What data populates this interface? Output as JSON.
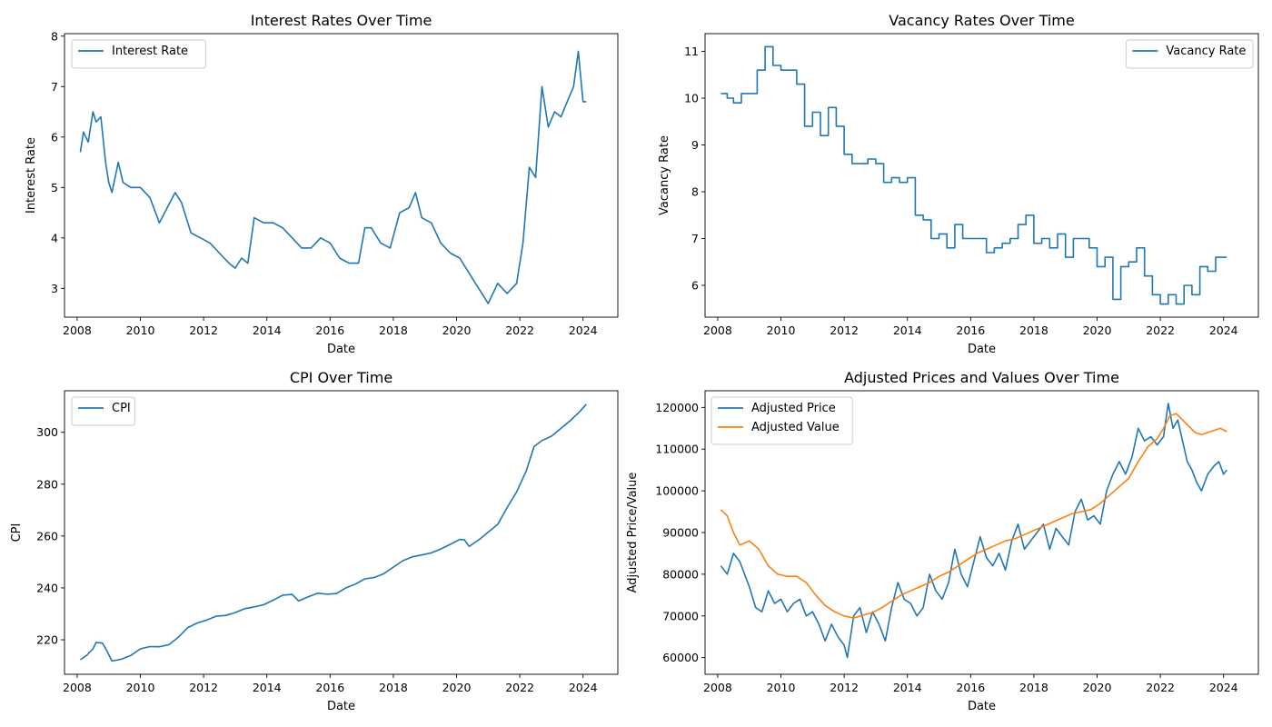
{
  "colors": {
    "blue": "#1f77b4",
    "orange": "#ff7f0e"
  },
  "chart_data": [
    {
      "type": "line",
      "title": "Interest Rates Over Time",
      "xlabel": "Date",
      "ylabel": "Interest Rate",
      "xlim": [
        2007.6,
        2025.1
      ],
      "ylim": [
        2.43,
        8.05
      ],
      "xticks": [
        2008,
        2010,
        2012,
        2014,
        2016,
        2018,
        2020,
        2022,
        2024
      ],
      "yticks": [
        3,
        4,
        5,
        6,
        7,
        8
      ],
      "legend": "upper-left",
      "grid": false,
      "series": [
        {
          "name": "Interest Rate",
          "color": "#1f77b4",
          "step": false,
          "x": [
            2008.1,
            2008.2,
            2008.35,
            2008.5,
            2008.6,
            2008.75,
            2008.9,
            2009.0,
            2009.1,
            2009.3,
            2009.45,
            2009.7,
            2010.0,
            2010.3,
            2010.6,
            2010.85,
            2011.1,
            2011.3,
            2011.6,
            2011.9,
            2012.2,
            2012.5,
            2012.8,
            2013.0,
            2013.2,
            2013.4,
            2013.6,
            2013.9,
            2014.2,
            2014.5,
            2014.8,
            2015.1,
            2015.4,
            2015.7,
            2016.0,
            2016.3,
            2016.6,
            2016.9,
            2017.1,
            2017.3,
            2017.6,
            2017.9,
            2018.2,
            2018.5,
            2018.7,
            2018.9,
            2019.2,
            2019.5,
            2019.8,
            2020.1,
            2020.4,
            2020.7,
            2021.0,
            2021.3,
            2021.6,
            2021.9,
            2022.1,
            2022.3,
            2022.5,
            2022.7,
            2022.9,
            2023.1,
            2023.3,
            2023.5,
            2023.7,
            2023.85,
            2024.0,
            2024.1
          ],
          "y": [
            5.7,
            6.1,
            5.9,
            6.5,
            6.3,
            6.4,
            5.5,
            5.1,
            4.9,
            5.5,
            5.1,
            5.0,
            5.0,
            4.8,
            4.3,
            4.6,
            4.9,
            4.7,
            4.1,
            4.0,
            3.9,
            3.7,
            3.5,
            3.4,
            3.6,
            3.5,
            4.4,
            4.3,
            4.3,
            4.2,
            4.0,
            3.8,
            3.8,
            4.0,
            3.9,
            3.6,
            3.5,
            3.5,
            4.2,
            4.2,
            3.9,
            3.8,
            4.5,
            4.6,
            4.9,
            4.4,
            4.3,
            3.9,
            3.7,
            3.6,
            3.3,
            3.0,
            2.7,
            3.1,
            2.9,
            3.1,
            3.9,
            5.4,
            5.2,
            7.0,
            6.2,
            6.5,
            6.4,
            6.7,
            7.0,
            7.7,
            6.7,
            6.7
          ]
        }
      ]
    },
    {
      "type": "line",
      "title": "Vacancy Rates Over Time",
      "xlabel": "Date",
      "ylabel": "Vacancy Rate",
      "xlim": [
        2007.6,
        2025.1
      ],
      "ylim": [
        5.32,
        11.38
      ],
      "xticks": [
        2008,
        2010,
        2012,
        2014,
        2016,
        2018,
        2020,
        2022,
        2024
      ],
      "yticks": [
        6,
        7,
        8,
        9,
        10,
        11
      ],
      "legend": "upper-right",
      "grid": false,
      "series": [
        {
          "name": "Vacancy Rate",
          "color": "#1f77b4",
          "step": true,
          "x": [
            2008.1,
            2008.3,
            2008.5,
            2008.75,
            2009.0,
            2009.25,
            2009.5,
            2009.75,
            2010.0,
            2010.5,
            2010.75,
            2011.0,
            2011.25,
            2011.5,
            2011.75,
            2012.0,
            2012.25,
            2012.75,
            2013.0,
            2013.25,
            2013.5,
            2013.75,
            2014.0,
            2014.25,
            2014.5,
            2014.75,
            2015.0,
            2015.25,
            2015.5,
            2015.75,
            2016.25,
            2016.5,
            2016.75,
            2017.0,
            2017.25,
            2017.5,
            2017.75,
            2018.0,
            2018.25,
            2018.5,
            2018.75,
            2019.0,
            2019.25,
            2019.75,
            2020.0,
            2020.25,
            2020.5,
            2020.75,
            2021.0,
            2021.25,
            2021.5,
            2021.75,
            2022.0,
            2022.25,
            2022.5,
            2022.75,
            2023.0,
            2023.25,
            2023.5,
            2023.75,
            2024.1
          ],
          "y": [
            10.1,
            10.0,
            9.9,
            10.1,
            10.1,
            10.6,
            11.1,
            10.7,
            10.6,
            10.3,
            9.4,
            9.7,
            9.2,
            9.8,
            9.4,
            8.8,
            8.6,
            8.7,
            8.6,
            8.2,
            8.3,
            8.2,
            8.3,
            7.5,
            7.4,
            7.0,
            7.1,
            6.8,
            7.3,
            7.0,
            7.0,
            6.7,
            6.8,
            6.9,
            7.0,
            7.3,
            7.5,
            6.9,
            7.0,
            6.8,
            7.1,
            6.6,
            7.0,
            6.8,
            6.4,
            6.6,
            5.7,
            6.4,
            6.5,
            6.8,
            6.2,
            5.8,
            5.6,
            5.8,
            5.6,
            6.0,
            5.8,
            6.4,
            6.3,
            6.6,
            6.6
          ]
        }
      ]
    },
    {
      "type": "line",
      "title": "CPI Over Time",
      "xlabel": "Date",
      "ylabel": "CPI",
      "xlim": [
        2007.6,
        2025.1
      ],
      "ylim": [
        206.7,
        316.0
      ],
      "xticks": [
        2008,
        2010,
        2012,
        2014,
        2016,
        2018,
        2020,
        2022,
        2024
      ],
      "yticks": [
        220,
        240,
        260,
        280,
        300
      ],
      "legend": "upper-left",
      "grid": false,
      "series": [
        {
          "name": "CPI",
          "color": "#1f77b4",
          "step": false,
          "x": [
            2008.1,
            2008.3,
            2008.5,
            2008.6,
            2008.8,
            2008.95,
            2009.1,
            2009.4,
            2009.7,
            2010.0,
            2010.3,
            2010.6,
            2010.9,
            2011.2,
            2011.5,
            2011.8,
            2012.1,
            2012.4,
            2012.7,
            2013.0,
            2013.3,
            2013.6,
            2013.9,
            2014.2,
            2014.5,
            2014.8,
            2015.0,
            2015.3,
            2015.6,
            2015.9,
            2016.2,
            2016.5,
            2016.8,
            2017.1,
            2017.4,
            2017.7,
            2018.0,
            2018.3,
            2018.6,
            2018.9,
            2019.2,
            2019.5,
            2019.8,
            2020.1,
            2020.25,
            2020.4,
            2020.7,
            2021.0,
            2021.3,
            2021.6,
            2021.9,
            2022.2,
            2022.45,
            2022.7,
            2023.0,
            2023.3,
            2023.6,
            2023.9,
            2024.1
          ],
          "y": [
            212.3,
            214.0,
            216.5,
            219.0,
            218.7,
            215.5,
            211.8,
            212.5,
            214.0,
            216.5,
            217.4,
            217.3,
            218.1,
            221.0,
            224.7,
            226.5,
            227.6,
            229.1,
            229.4,
            230.5,
            232.0,
            232.7,
            233.5,
            235.3,
            237.2,
            237.5,
            235.0,
            236.5,
            238.0,
            237.6,
            237.8,
            240.0,
            241.5,
            243.5,
            244.0,
            245.5,
            248.0,
            250.5,
            252.0,
            252.7,
            253.5,
            255.0,
            256.8,
            258.7,
            258.5,
            256.0,
            258.5,
            261.5,
            264.5,
            271.0,
            277.0,
            285.0,
            294.5,
            296.8,
            298.5,
            301.5,
            304.5,
            308.0,
            310.8
          ]
        }
      ]
    },
    {
      "type": "line",
      "title": "Adjusted Prices and Values Over Time",
      "xlabel": "Date",
      "ylabel": "Adjusted Price/Value",
      "xlim": [
        2007.6,
        2025.1
      ],
      "ylim": [
        56000,
        124000
      ],
      "xticks": [
        2008,
        2010,
        2012,
        2014,
        2016,
        2018,
        2020,
        2022,
        2024
      ],
      "yticks": [
        60000,
        70000,
        80000,
        90000,
        100000,
        110000,
        120000
      ],
      "legend": "upper-left",
      "grid": false,
      "series": [
        {
          "name": "Adjusted Price",
          "color": "#1f77b4",
          "step": false,
          "x": [
            2008.1,
            2008.3,
            2008.5,
            2008.7,
            2009.0,
            2009.2,
            2009.4,
            2009.6,
            2009.8,
            2010.0,
            2010.2,
            2010.4,
            2010.6,
            2010.8,
            2011.0,
            2011.2,
            2011.4,
            2011.6,
            2011.8,
            2012.0,
            2012.1,
            2012.3,
            2012.5,
            2012.7,
            2012.9,
            2013.1,
            2013.3,
            2013.5,
            2013.7,
            2013.9,
            2014.1,
            2014.3,
            2014.5,
            2014.7,
            2014.9,
            2015.1,
            2015.3,
            2015.5,
            2015.7,
            2015.9,
            2016.1,
            2016.3,
            2016.5,
            2016.7,
            2016.9,
            2017.1,
            2017.3,
            2017.5,
            2017.7,
            2017.9,
            2018.1,
            2018.3,
            2018.5,
            2018.7,
            2018.9,
            2019.1,
            2019.3,
            2019.5,
            2019.7,
            2019.9,
            2020.1,
            2020.3,
            2020.5,
            2020.7,
            2020.9,
            2021.1,
            2021.3,
            2021.5,
            2021.7,
            2021.9,
            2022.1,
            2022.25,
            2022.4,
            2022.55,
            2022.7,
            2022.85,
            2023.0,
            2023.15,
            2023.3,
            2023.5,
            2023.7,
            2023.85,
            2024.0,
            2024.1
          ],
          "y": [
            82000,
            80000,
            85000,
            83000,
            77000,
            72000,
            71000,
            76000,
            73000,
            74000,
            71000,
            73000,
            74000,
            70000,
            71000,
            68000,
            64000,
            68000,
            65000,
            63000,
            60000,
            70000,
            72000,
            66000,
            71000,
            68000,
            64000,
            72000,
            78000,
            74000,
            73000,
            70000,
            72000,
            80000,
            76000,
            74000,
            78000,
            86000,
            80000,
            77000,
            83000,
            89000,
            84000,
            82000,
            85000,
            81000,
            88000,
            92000,
            86000,
            88000,
            90000,
            92000,
            86000,
            91000,
            89000,
            87000,
            95000,
            98000,
            93000,
            94000,
            92000,
            100000,
            104000,
            107000,
            104000,
            108000,
            115000,
            112000,
            113000,
            111000,
            113000,
            121000,
            115000,
            117000,
            112000,
            107000,
            105000,
            102000,
            100000,
            104000,
            106000,
            107000,
            104000,
            105000
          ]
        },
        {
          "name": "Adjusted Value",
          "color": "#ff7f0e",
          "step": false,
          "x": [
            2008.1,
            2008.3,
            2008.5,
            2008.7,
            2009.0,
            2009.3,
            2009.6,
            2009.9,
            2010.2,
            2010.5,
            2010.8,
            2011.1,
            2011.4,
            2011.7,
            2012.0,
            2012.3,
            2012.6,
            2012.9,
            2013.2,
            2013.5,
            2013.8,
            2014.1,
            2014.4,
            2014.7,
            2015.0,
            2015.3,
            2015.6,
            2015.9,
            2016.2,
            2016.5,
            2016.8,
            2017.1,
            2017.4,
            2017.7,
            2018.0,
            2018.3,
            2018.6,
            2018.9,
            2019.2,
            2019.5,
            2019.8,
            2020.1,
            2020.4,
            2020.7,
            2021.0,
            2021.3,
            2021.6,
            2021.9,
            2022.1,
            2022.3,
            2022.5,
            2022.7,
            2022.9,
            2023.1,
            2023.3,
            2023.5,
            2023.7,
            2023.9,
            2024.1
          ],
          "y": [
            95500,
            94000,
            90000,
            87000,
            88000,
            86000,
            82000,
            80000,
            79500,
            79500,
            78000,
            75000,
            72500,
            71000,
            70000,
            69500,
            70200,
            70800,
            72000,
            73500,
            75000,
            76000,
            77000,
            78000,
            79500,
            80500,
            82000,
            83500,
            85000,
            86000,
            87000,
            88000,
            88500,
            89500,
            90500,
            91500,
            92500,
            93500,
            94500,
            95000,
            95500,
            97000,
            99000,
            101000,
            103000,
            107000,
            110500,
            112500,
            115000,
            118000,
            118500,
            117000,
            115500,
            114000,
            113500,
            114000,
            114500,
            115000,
            114200
          ]
        }
      ]
    }
  ]
}
